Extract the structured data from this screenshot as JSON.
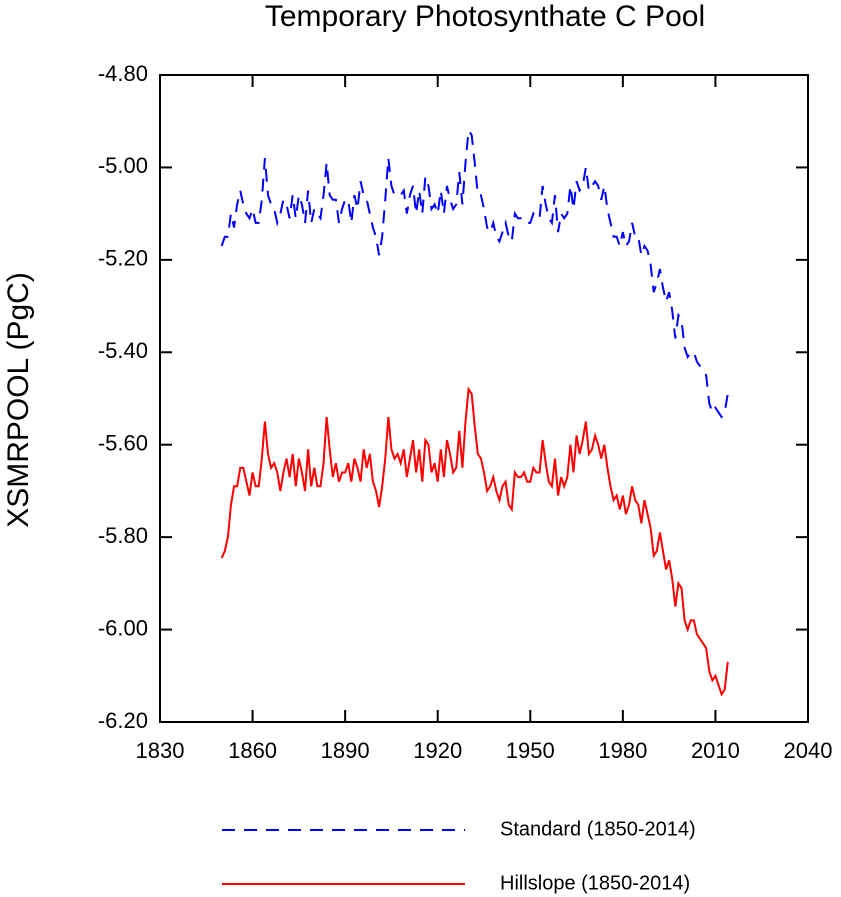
{
  "chart_data": {
    "type": "line",
    "title": "Temporary Photosynthate C Pool",
    "y_label": "XSMRPOOL  (PgC)",
    "x_start": 1850,
    "x_end": 2014,
    "series": [
      {
        "name": "Standard (1850-2014)",
        "color": "#0000ff",
        "line_style": "dashed",
        "values": [
          -5.17,
          -5.15,
          -5.15,
          -5.1,
          -5.13,
          -5.08,
          -5.05,
          -5.08,
          -5.1,
          -5.11,
          -5.09,
          -5.12,
          -5.12,
          -5.07,
          -4.98,
          -5.06,
          -5.08,
          -5.09,
          -5.12,
          -5.1,
          -5.07,
          -5.08,
          -5.11,
          -5.06,
          -5.11,
          -5.06,
          -5.08,
          -5.12,
          -5.05,
          -5.12,
          -5.09,
          -5.1,
          -5.11,
          -5.06,
          -4.99,
          -5.06,
          -5.07,
          -5.07,
          -5.12,
          -5.09,
          -5.07,
          -5.07,
          -5.12,
          -5.06,
          -5.09,
          -5.03,
          -5.06,
          -5.07,
          -5.1,
          -5.13,
          -5.15,
          -5.19,
          -5.15,
          -5.07,
          -4.98,
          -5.04,
          -5.06,
          -5.06,
          -5.06,
          -5.05,
          -5.1,
          -5.06,
          -5.04,
          -5.1,
          -5.05,
          -5.1,
          -5.02,
          -5.04,
          -5.09,
          -5.08,
          -5.1,
          -5.05,
          -5.1,
          -5.04,
          -5.07,
          -5.09,
          -5.08,
          -5.01,
          -5.08,
          -4.99,
          -4.92,
          -4.93,
          -4.99,
          -5.06,
          -5.06,
          -5.09,
          -5.13,
          -5.14,
          -5.12,
          -5.15,
          -5.16,
          -5.14,
          -5.12,
          -5.15,
          -5.16,
          -5.1,
          -5.11,
          -5.11,
          -5.11,
          -5.12,
          -5.12,
          -5.1,
          -5.11,
          -5.11,
          -5.04,
          -5.08,
          -5.11,
          -5.12,
          -5.06,
          -5.14,
          -5.1,
          -5.11,
          -5.1,
          -5.04,
          -5.09,
          -5.03,
          -5.05,
          -5.04,
          -5.0,
          -5.05,
          -5.04,
          -5.03,
          -5.04,
          -5.07,
          -5.04,
          -5.09,
          -5.12,
          -5.15,
          -5.15,
          -5.17,
          -5.14,
          -5.17,
          -5.16,
          -5.12,
          -5.15,
          -5.15,
          -5.19,
          -5.17,
          -5.18,
          -5.21,
          -5.27,
          -5.25,
          -5.22,
          -5.26,
          -5.29,
          -5.27,
          -5.31,
          -5.37,
          -5.32,
          -5.33,
          -5.39,
          -5.41,
          -5.4,
          -5.4,
          -5.42,
          -5.43,
          -5.44,
          -5.45,
          -5.51,
          -5.53,
          -5.52,
          -5.53,
          -5.54,
          -5.53,
          -5.49
        ]
      },
      {
        "name": "Hillslope (1850-2014)",
        "color": "#ff0000",
        "line_style": "solid",
        "values": [
          -5.845,
          -5.83,
          -5.8,
          -5.73,
          -5.69,
          -5.69,
          -5.65,
          -5.65,
          -5.68,
          -5.71,
          -5.66,
          -5.69,
          -5.69,
          -5.63,
          -5.55,
          -5.62,
          -5.65,
          -5.64,
          -5.66,
          -5.7,
          -5.66,
          -5.63,
          -5.67,
          -5.62,
          -5.69,
          -5.63,
          -5.66,
          -5.7,
          -5.61,
          -5.69,
          -5.65,
          -5.69,
          -5.69,
          -5.64,
          -5.54,
          -5.61,
          -5.67,
          -5.64,
          -5.68,
          -5.66,
          -5.66,
          -5.64,
          -5.68,
          -5.63,
          -5.65,
          -5.68,
          -5.61,
          -5.65,
          -5.62,
          -5.68,
          -5.7,
          -5.735,
          -5.69,
          -5.63,
          -5.54,
          -5.61,
          -5.63,
          -5.62,
          -5.64,
          -5.61,
          -5.67,
          -5.63,
          -5.59,
          -5.66,
          -5.61,
          -5.68,
          -5.59,
          -5.6,
          -5.66,
          -5.64,
          -5.68,
          -5.61,
          -5.67,
          -5.59,
          -5.62,
          -5.66,
          -5.65,
          -5.57,
          -5.65,
          -5.55,
          -5.48,
          -5.49,
          -5.56,
          -5.62,
          -5.63,
          -5.66,
          -5.7,
          -5.69,
          -5.67,
          -5.7,
          -5.72,
          -5.69,
          -5.68,
          -5.73,
          -5.74,
          -5.66,
          -5.67,
          -5.67,
          -5.66,
          -5.68,
          -5.68,
          -5.65,
          -5.66,
          -5.66,
          -5.59,
          -5.64,
          -5.68,
          -5.69,
          -5.63,
          -5.71,
          -5.67,
          -5.69,
          -5.67,
          -5.6,
          -5.66,
          -5.58,
          -5.62,
          -5.59,
          -5.55,
          -5.62,
          -5.61,
          -5.58,
          -5.6,
          -5.63,
          -5.6,
          -5.65,
          -5.69,
          -5.72,
          -5.71,
          -5.74,
          -5.71,
          -5.75,
          -5.73,
          -5.69,
          -5.72,
          -5.73,
          -5.77,
          -5.72,
          -5.75,
          -5.78,
          -5.84,
          -5.83,
          -5.79,
          -5.83,
          -5.87,
          -5.85,
          -5.89,
          -5.95,
          -5.9,
          -5.91,
          -5.98,
          -6.0,
          -5.98,
          -5.98,
          -6.01,
          -6.02,
          -6.03,
          -6.04,
          -6.09,
          -6.11,
          -6.1,
          -6.12,
          -6.14,
          -6.13,
          -6.07
        ]
      }
    ],
    "xlim": [
      1830,
      2040
    ],
    "xticks": [
      1830,
      1860,
      1890,
      1920,
      1950,
      1980,
      2010,
      2040
    ],
    "ylim": [
      -6.2,
      -4.8
    ],
    "yticks": [
      {
        "value": -6.2,
        "label": "-6.20"
      },
      {
        "value": -6.0,
        "label": "-6.00"
      },
      {
        "value": -5.8,
        "label": "-5.80"
      },
      {
        "value": -5.6,
        "label": "-5.60"
      },
      {
        "value": -5.4,
        "label": "-5.40"
      },
      {
        "value": -5.2,
        "label": "-5.20"
      },
      {
        "value": -5.0,
        "label": "-5.00"
      },
      {
        "value": -4.8,
        "label": "-4.80"
      }
    ],
    "grid": false,
    "legend": "bottom"
  }
}
